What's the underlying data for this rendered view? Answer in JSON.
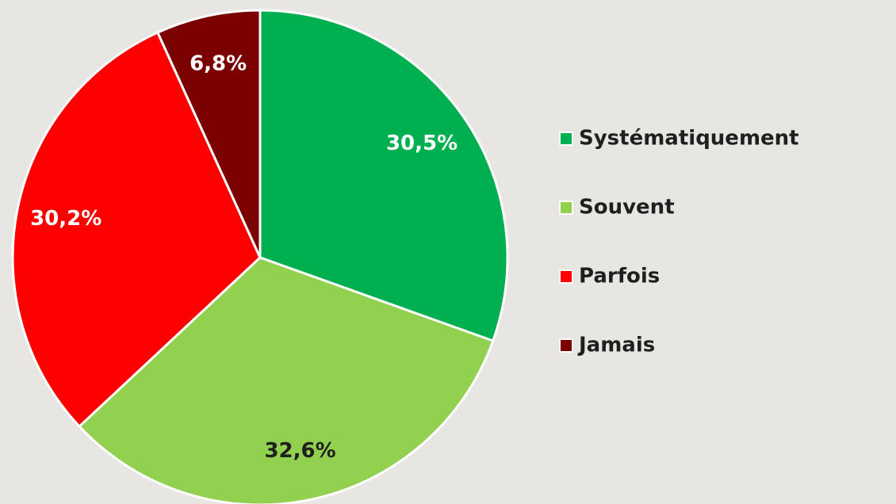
{
  "chart_data": {
    "type": "pie",
    "categories": [
      "Systématiquement",
      "Souvent",
      "Parfois",
      "Jamais"
    ],
    "values": [
      30.5,
      32.6,
      30.2,
      6.8
    ],
    "value_labels": [
      "30,5%",
      "32,6%",
      "30,2%",
      "6,8%"
    ],
    "colors": [
      "#00b050",
      "#92d050",
      "#ff0000",
      "#7b0000"
    ],
    "legend": "right"
  }
}
